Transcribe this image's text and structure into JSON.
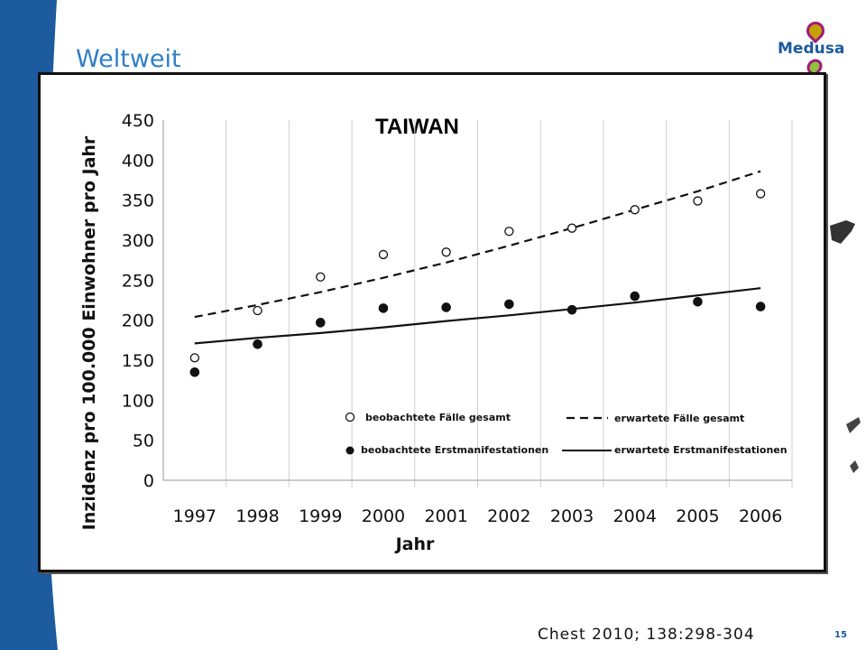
{
  "slide": {
    "title": "Weltweit",
    "logo_text": "Medusa",
    "citation": "Chest 2010; 138:298-304",
    "page_number": "15"
  },
  "colors": {
    "band_blue": "#1c5b9e",
    "title_blue": "#2f7fc6",
    "logo_magenta": "#a3197a",
    "logo_green": "#8fbf3d"
  },
  "chart_data": {
    "type": "scatter",
    "title": "TAIWAN",
    "xlabel": "Jahr",
    "ylabel": "Inzidenz pro 100.000 Einwohner pro Jahr",
    "x": [
      1997,
      1998,
      1999,
      2000,
      2001,
      2002,
      2003,
      2004,
      2005,
      2006
    ],
    "ylim": [
      0,
      450
    ],
    "yticks": [
      0,
      50,
      100,
      150,
      200,
      250,
      300,
      350,
      400,
      450
    ],
    "grid": "vertical",
    "series": [
      {
        "name": "beobachtete Fälle gesamt",
        "style": "open-circle",
        "values": [
          153,
          212,
          254,
          282,
          285,
          311,
          315,
          338,
          349,
          358
        ]
      },
      {
        "name": "erwartete Fälle gesamt",
        "style": "dashed-line",
        "values": [
          204,
          219,
          235,
          253,
          272,
          293,
          315,
          338,
          361,
          386
        ]
      },
      {
        "name": "beobachtete Erstmanifestationen",
        "style": "filled-circle",
        "values": [
          135,
          170,
          197,
          215,
          216,
          220,
          213,
          230,
          223,
          217
        ]
      },
      {
        "name": "erwartete Erstmanifestationen",
        "style": "solid-line",
        "values": [
          171,
          178,
          184,
          191,
          199,
          206,
          214,
          222,
          231,
          240
        ]
      }
    ],
    "legend_position": "bottom-right"
  }
}
